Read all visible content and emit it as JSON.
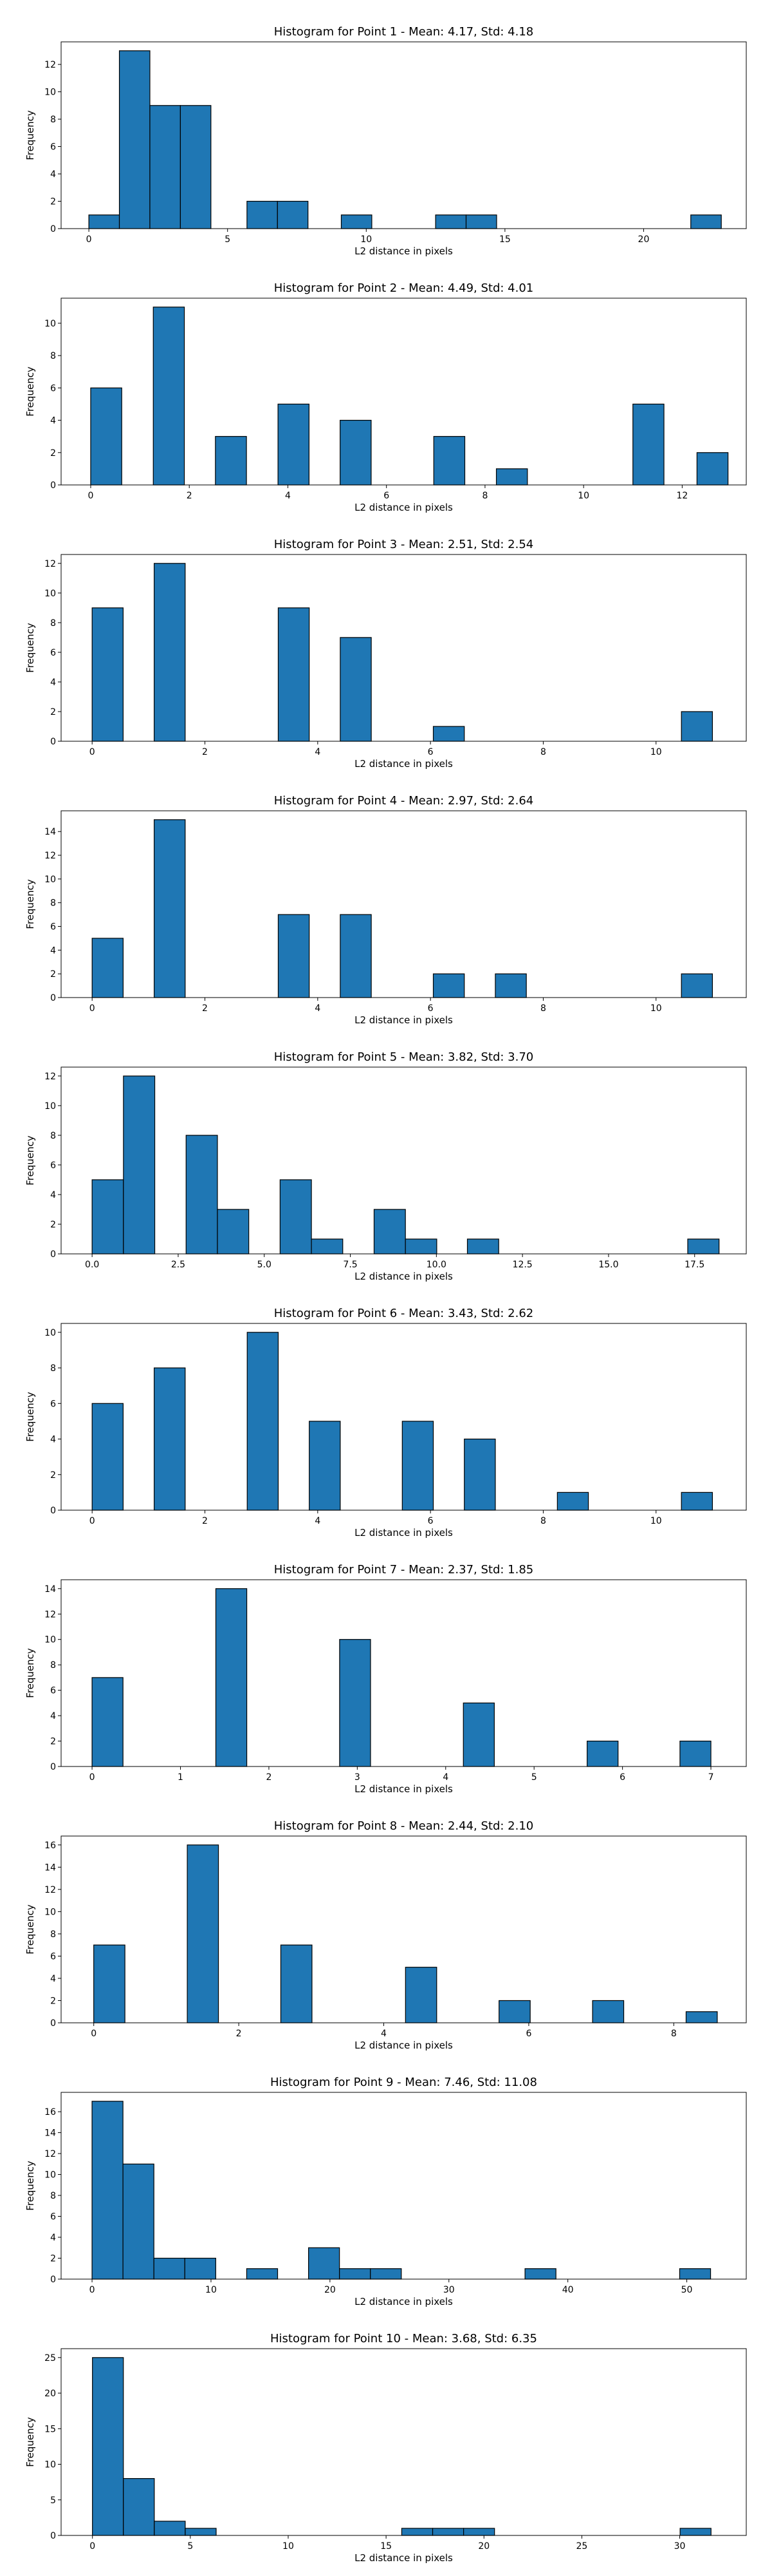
{
  "chart_data": [
    {
      "type": "bar",
      "title": "Histogram for Point 1 - Mean: 4.17, Std: 4.18",
      "xlabel": "L2 distance in pixels",
      "ylabel": "Frequency",
      "xlim": [
        -1.0,
        23.7
      ],
      "ylim": [
        0,
        13.65
      ],
      "xticks": [
        0,
        5,
        10,
        15,
        20
      ],
      "yticks": [
        0,
        2,
        4,
        6,
        8,
        10,
        12
      ],
      "bin_width": 1.1,
      "bins": [
        {
          "x": 0.0,
          "count": 1
        },
        {
          "x": 1.1,
          "count": 13
        },
        {
          "x": 2.2,
          "count": 9
        },
        {
          "x": 3.3,
          "count": 9
        },
        {
          "x": 5.7,
          "count": 2
        },
        {
          "x": 6.8,
          "count": 2
        },
        {
          "x": 9.1,
          "count": 1
        },
        {
          "x": 12.5,
          "count": 1
        },
        {
          "x": 13.6,
          "count": 1
        },
        {
          "x": 21.7,
          "count": 1
        }
      ]
    },
    {
      "type": "bar",
      "title": "Histogram for Point 2 - Mean: 4.49, Std: 4.01",
      "xlabel": "L2 distance in pixels",
      "ylabel": "Frequency",
      "xlim": [
        -0.6,
        13.3
      ],
      "ylim": [
        0,
        11.55
      ],
      "xticks": [
        0,
        2,
        4,
        6,
        8,
        10,
        12
      ],
      "yticks": [
        0,
        2,
        4,
        6,
        8,
        10
      ],
      "bin_width": 0.63,
      "bins": [
        {
          "x": 0.0,
          "count": 6
        },
        {
          "x": 1.27,
          "count": 11
        },
        {
          "x": 2.53,
          "count": 3
        },
        {
          "x": 3.8,
          "count": 5
        },
        {
          "x": 5.06,
          "count": 4
        },
        {
          "x": 6.96,
          "count": 3
        },
        {
          "x": 8.23,
          "count": 1
        },
        {
          "x": 11.0,
          "count": 5
        },
        {
          "x": 12.3,
          "count": 2
        }
      ]
    },
    {
      "type": "bar",
      "title": "Histogram for Point 3 - Mean: 2.51, Std: 2.54",
      "xlabel": "L2 distance in pixels",
      "ylabel": "Frequency",
      "xlim": [
        -0.55,
        11.6
      ],
      "ylim": [
        0,
        12.6
      ],
      "xticks": [
        0,
        2,
        4,
        6,
        8,
        10
      ],
      "yticks": [
        0,
        2,
        4,
        6,
        8,
        10,
        12
      ],
      "bin_width": 0.55,
      "bins": [
        {
          "x": 0.0,
          "count": 9
        },
        {
          "x": 1.1,
          "count": 12
        },
        {
          "x": 3.3,
          "count": 9
        },
        {
          "x": 4.4,
          "count": 7
        },
        {
          "x": 6.05,
          "count": 1
        },
        {
          "x": 10.45,
          "count": 2
        }
      ]
    },
    {
      "type": "bar",
      "title": "Histogram for Point 4 - Mean: 2.97, Std: 2.64",
      "xlabel": "L2 distance in pixels",
      "ylabel": "Frequency",
      "xlim": [
        -0.55,
        11.6
      ],
      "ylim": [
        0,
        15.75
      ],
      "xticks": [
        0,
        2,
        4,
        6,
        8,
        10
      ],
      "yticks": [
        0,
        2,
        4,
        6,
        8,
        10,
        12,
        14
      ],
      "bin_width": 0.55,
      "bins": [
        {
          "x": 0.0,
          "count": 5
        },
        {
          "x": 1.1,
          "count": 15
        },
        {
          "x": 3.3,
          "count": 7
        },
        {
          "x": 4.4,
          "count": 7
        },
        {
          "x": 6.05,
          "count": 2
        },
        {
          "x": 7.15,
          "count": 2
        },
        {
          "x": 10.45,
          "count": 2
        }
      ]
    },
    {
      "type": "bar",
      "title": "Histogram for Point 5 - Mean: 3.82, Std: 3.70",
      "xlabel": "L2 distance in pixels",
      "ylabel": "Frequency",
      "xlim": [
        -0.9,
        19.0
      ],
      "ylim": [
        0,
        12.6
      ],
      "xticks": [
        0.0,
        2.5,
        5.0,
        7.5,
        10.0,
        12.5,
        15.0,
        17.5
      ],
      "yticks": [
        0,
        2,
        4,
        6,
        8,
        10,
        12
      ],
      "bin_width": 0.91,
      "bins": [
        {
          "x": 0.0,
          "count": 5
        },
        {
          "x": 0.91,
          "count": 12
        },
        {
          "x": 2.73,
          "count": 8
        },
        {
          "x": 3.64,
          "count": 3
        },
        {
          "x": 5.46,
          "count": 5
        },
        {
          "x": 6.37,
          "count": 1
        },
        {
          "x": 8.19,
          "count": 3
        },
        {
          "x": 9.1,
          "count": 1
        },
        {
          "x": 10.9,
          "count": 1
        },
        {
          "x": 17.3,
          "count": 1
        }
      ]
    },
    {
      "type": "bar",
      "title": "Histogram for Point 6 - Mean: 3.43, Std: 2.62",
      "xlabel": "L2 distance in pixels",
      "ylabel": "Frequency",
      "xlim": [
        -0.55,
        11.6
      ],
      "ylim": [
        0,
        10.5
      ],
      "xticks": [
        0,
        2,
        4,
        6,
        8,
        10
      ],
      "yticks": [
        0,
        2,
        4,
        6,
        8,
        10
      ],
      "bin_width": 0.55,
      "bins": [
        {
          "x": 0.0,
          "count": 6
        },
        {
          "x": 1.1,
          "count": 8
        },
        {
          "x": 2.75,
          "count": 10
        },
        {
          "x": 3.85,
          "count": 5
        },
        {
          "x": 5.5,
          "count": 5
        },
        {
          "x": 6.6,
          "count": 4
        },
        {
          "x": 8.25,
          "count": 1
        },
        {
          "x": 10.45,
          "count": 1
        }
      ]
    },
    {
      "type": "bar",
      "title": "Histogram for Point 7 - Mean: 2.37, Std: 1.85",
      "xlabel": "L2 distance in pixels",
      "ylabel": "Frequency",
      "xlim": [
        -0.35,
        7.4
      ],
      "ylim": [
        0,
        14.7
      ],
      "xticks": [
        0,
        1,
        2,
        3,
        4,
        5,
        6,
        7
      ],
      "yticks": [
        0,
        2,
        4,
        6,
        8,
        10,
        12,
        14
      ],
      "bin_width": 0.35,
      "bins": [
        {
          "x": 0.0,
          "count": 7
        },
        {
          "x": 1.4,
          "count": 14
        },
        {
          "x": 2.8,
          "count": 10
        },
        {
          "x": 4.2,
          "count": 5
        },
        {
          "x": 5.6,
          "count": 2
        },
        {
          "x": 6.65,
          "count": 2
        }
      ]
    },
    {
      "type": "bar",
      "title": "Histogram for Point 8 - Mean: 2.44, Std: 2.10",
      "xlabel": "L2 distance in pixels",
      "ylabel": "Frequency",
      "xlim": [
        -0.45,
        9.0
      ],
      "ylim": [
        0,
        16.8
      ],
      "xticks": [
        0,
        2,
        4,
        6,
        8
      ],
      "yticks": [
        0,
        2,
        4,
        6,
        8,
        10,
        12,
        14,
        16
      ],
      "bin_width": 0.43,
      "bins": [
        {
          "x": 0.0,
          "count": 7
        },
        {
          "x": 1.29,
          "count": 16
        },
        {
          "x": 2.58,
          "count": 7
        },
        {
          "x": 4.3,
          "count": 5
        },
        {
          "x": 5.59,
          "count": 2
        },
        {
          "x": 6.88,
          "count": 2
        },
        {
          "x": 8.17,
          "count": 1
        }
      ]
    },
    {
      "type": "bar",
      "title": "Histogram for Point 9 - Mean: 7.46, Std: 11.08",
      "xlabel": "L2 distance in pixels",
      "ylabel": "Frequency",
      "xlim": [
        -2.6,
        55.0
      ],
      "ylim": [
        0,
        17.85
      ],
      "xticks": [
        0,
        10,
        20,
        30,
        40,
        50
      ],
      "yticks": [
        0,
        2,
        4,
        6,
        8,
        10,
        12,
        14,
        16
      ],
      "bin_width": 2.6,
      "bins": [
        {
          "x": 0.0,
          "count": 17
        },
        {
          "x": 2.6,
          "count": 11
        },
        {
          "x": 5.2,
          "count": 2
        },
        {
          "x": 7.8,
          "count": 2
        },
        {
          "x": 13.0,
          "count": 1
        },
        {
          "x": 18.2,
          "count": 3
        },
        {
          "x": 20.8,
          "count": 1
        },
        {
          "x": 23.4,
          "count": 1
        },
        {
          "x": 36.4,
          "count": 1
        },
        {
          "x": 49.4,
          "count": 1
        }
      ]
    },
    {
      "type": "bar",
      "title": "Histogram for Point 10 - Mean: 3.68, Std: 6.35",
      "xlabel": "L2 distance in pixels",
      "ylabel": "Frequency",
      "xlim": [
        -1.6,
        33.4
      ],
      "ylim": [
        0,
        26.25
      ],
      "xticks": [
        0,
        5,
        10,
        15,
        20,
        25,
        30
      ],
      "yticks": [
        0,
        5,
        10,
        15,
        20,
        25
      ],
      "bin_width": 1.58,
      "bins": [
        {
          "x": 0.0,
          "count": 25
        },
        {
          "x": 1.58,
          "count": 8
        },
        {
          "x": 3.16,
          "count": 2
        },
        {
          "x": 4.74,
          "count": 1
        },
        {
          "x": 15.8,
          "count": 1
        },
        {
          "x": 17.38,
          "count": 1
        },
        {
          "x": 18.96,
          "count": 1
        },
        {
          "x": 30.02,
          "count": 1
        }
      ]
    }
  ],
  "colors": {
    "bar_fill": "#1f77b4",
    "bar_edge": "#000000",
    "axes": "#000000",
    "background": "#ffffff"
  }
}
